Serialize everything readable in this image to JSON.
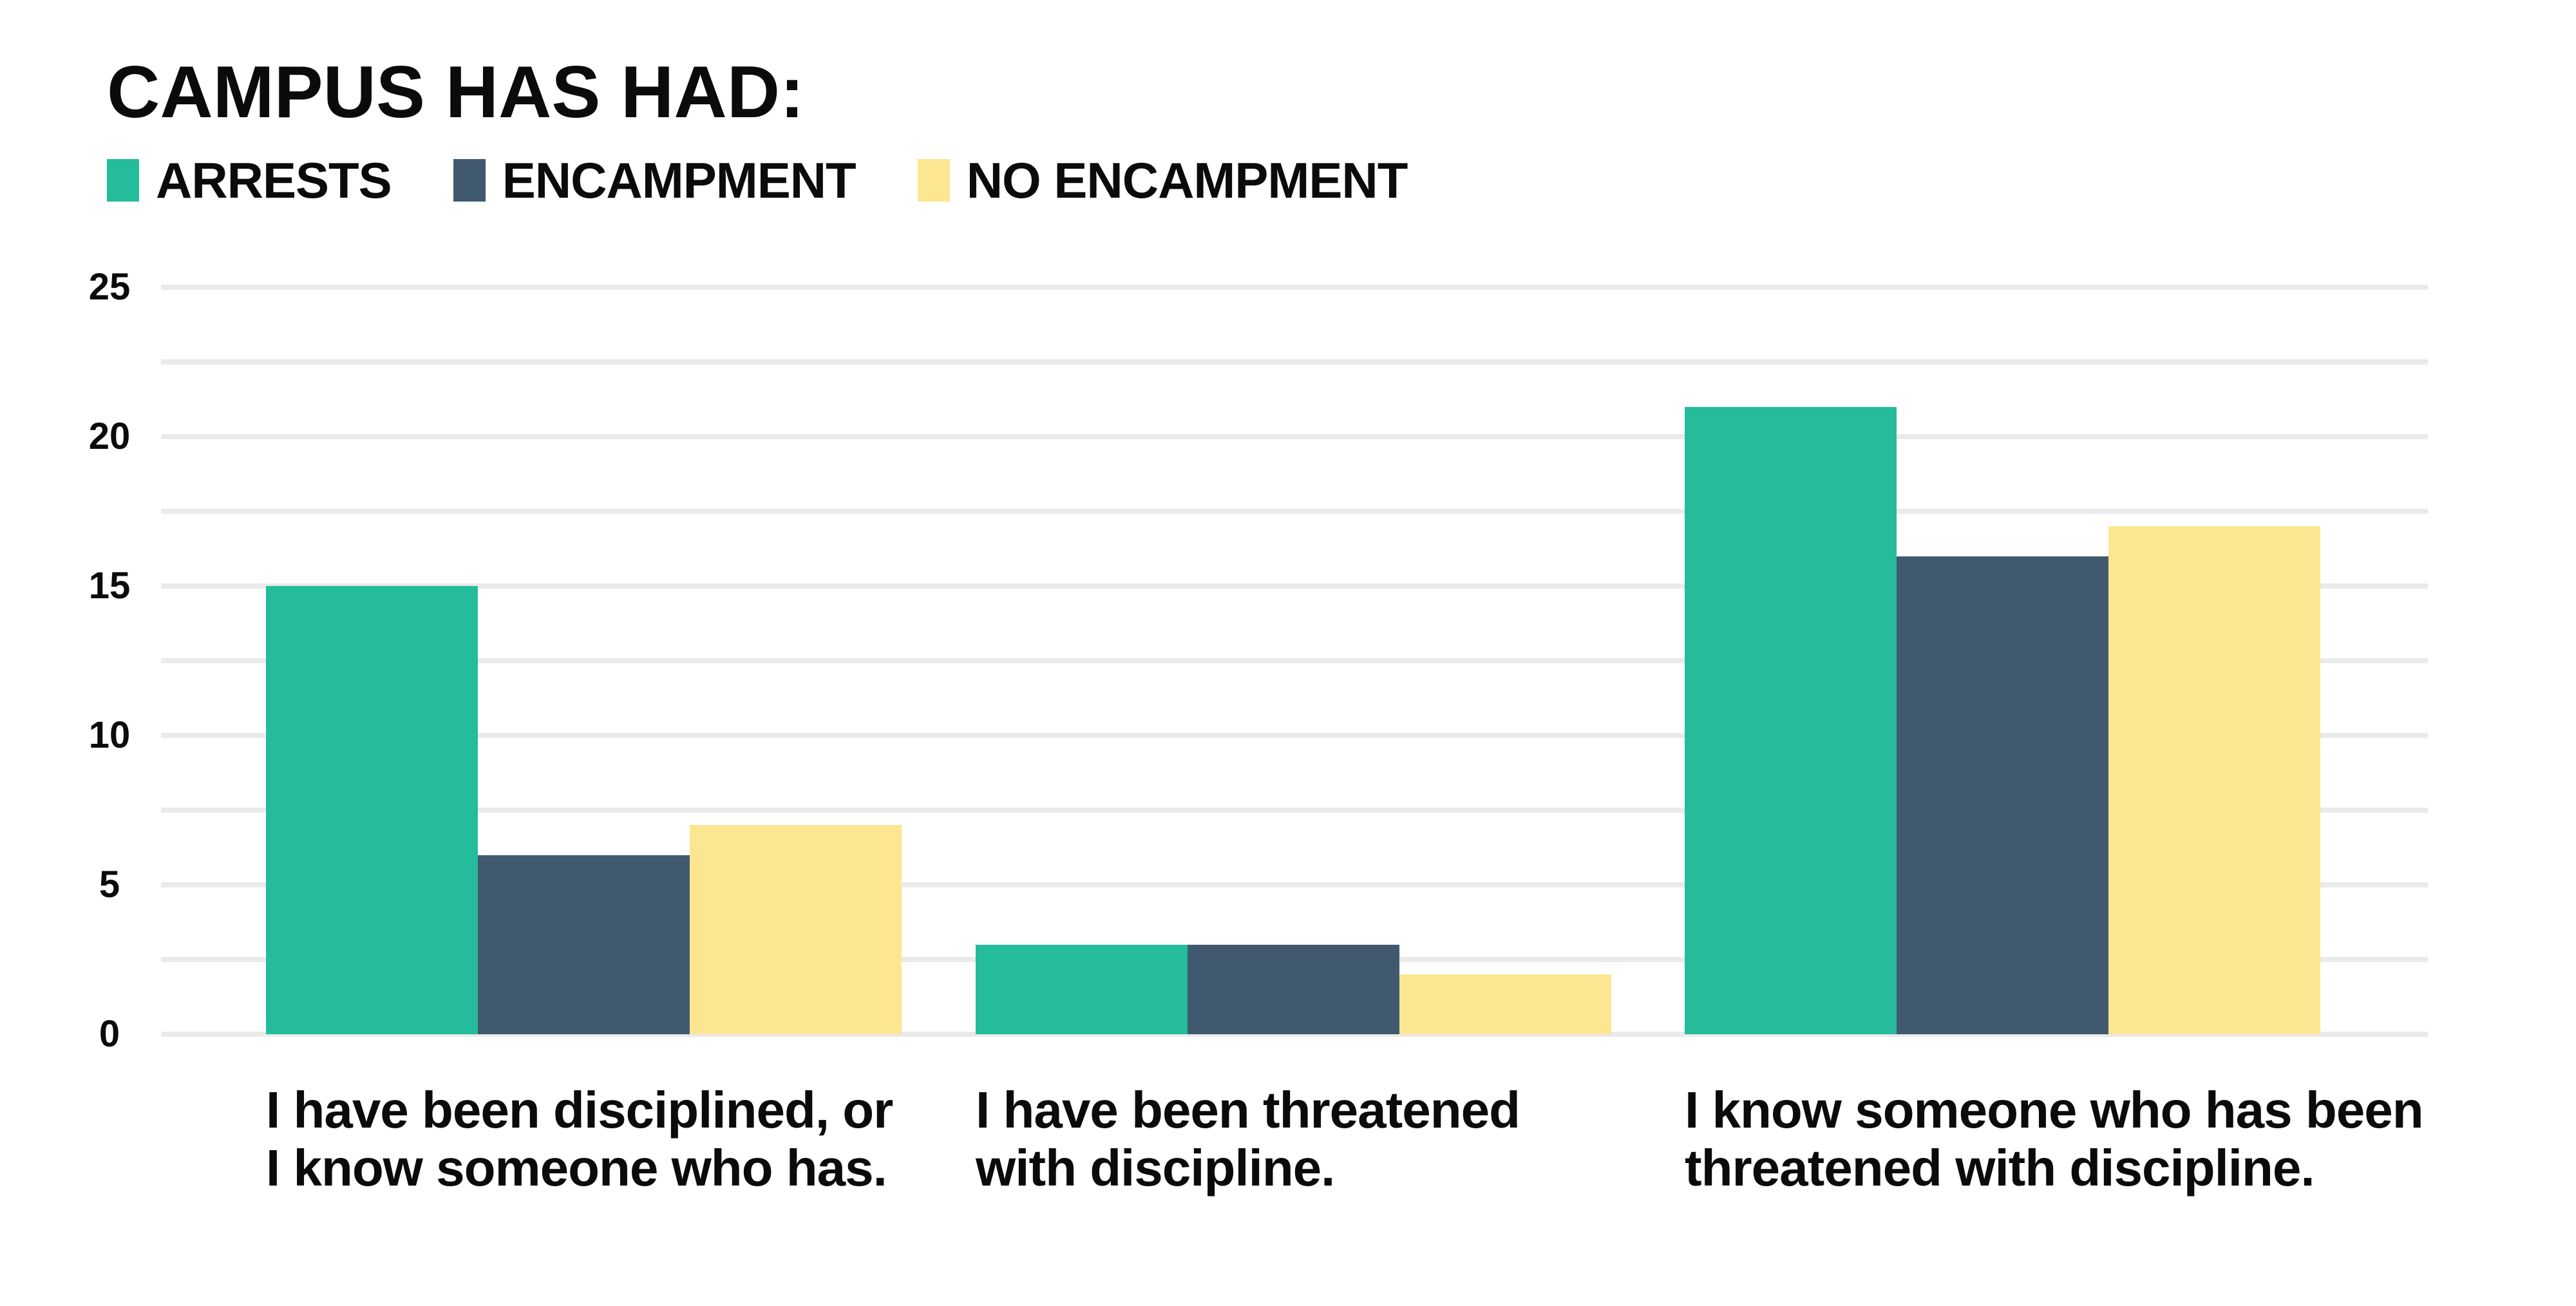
{
  "chart": {
    "title": "CAMPUS HAS HAD:"
  },
  "chart_data": {
    "type": "bar",
    "title": "CAMPUS HAS HAD:",
    "categories": [
      "I have been disciplined, or\nI know someone who has.",
      "I have been threatened\nwith discipline.",
      "I know someone who has been\nthreatened with discipline."
    ],
    "series": [
      {
        "name": "ARRESTS",
        "color": "#24BC9B",
        "values": [
          15,
          3,
          21
        ]
      },
      {
        "name": "ENCAMPMENT",
        "color": "#41596F",
        "values": [
          6,
          3,
          16
        ]
      },
      {
        "name": "NO ENCAMPMENT",
        "color": "#FCE692",
        "values": [
          7,
          2,
          17
        ]
      }
    ],
    "ylim": [
      0,
      25
    ],
    "yticks": [
      0,
      5,
      10,
      15,
      20,
      25
    ],
    "gridline_step": 2.5,
    "grid": true,
    "legend_position": "top-left",
    "xlabel": "",
    "ylabel": "",
    "colors": {
      "grid": "#EAEAEA",
      "text": "#0B0B0B",
      "background": "#FFFFFF"
    }
  }
}
